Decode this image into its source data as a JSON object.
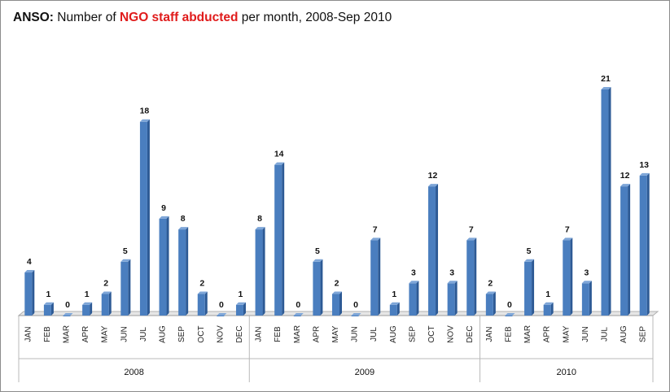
{
  "header": {
    "prefix": "ANSO:",
    "text_before": " Number of ",
    "highlight": "NGO staff abducted",
    "text_after": " per month, 2008-Sep 2010"
  },
  "colors": {
    "bar_front": "#4a7ebf",
    "bar_side": "#2d5a95",
    "bar_top": "#7ea6d8",
    "highlight": "#e01b1b",
    "grid": "#b8b8b8"
  },
  "chart_data": {
    "type": "bar",
    "title": "ANSO: Number of NGO staff abducted per month, 2008-Sep 2010",
    "xlabel": "",
    "ylabel": "",
    "ylim": [
      0,
      21
    ],
    "grid": false,
    "legend": "none",
    "categories": [
      "JAN",
      "FEB",
      "MAR",
      "APR",
      "MAY",
      "JUN",
      "JUL",
      "AUG",
      "SEP",
      "OCT",
      "NOV",
      "DEC",
      "JAN",
      "FEB",
      "MAR",
      "APR",
      "MAY",
      "JUN",
      "JUL",
      "AUG",
      "SEP",
      "OCT",
      "NOV",
      "DEC",
      "JAN",
      "FEB",
      "MAR",
      "APR",
      "MAY",
      "JUN",
      "JUL",
      "AUG",
      "SEP"
    ],
    "values": [
      4,
      1,
      0,
      1,
      2,
      5,
      18,
      9,
      8,
      2,
      0,
      1,
      8,
      14,
      0,
      5,
      2,
      0,
      7,
      1,
      3,
      12,
      3,
      7,
      2,
      0,
      5,
      1,
      7,
      3,
      21,
      12,
      13
    ],
    "groups": [
      {
        "label": "2008",
        "count": 12
      },
      {
        "label": "2009",
        "count": 12
      },
      {
        "label": "2010",
        "count": 9
      }
    ]
  }
}
